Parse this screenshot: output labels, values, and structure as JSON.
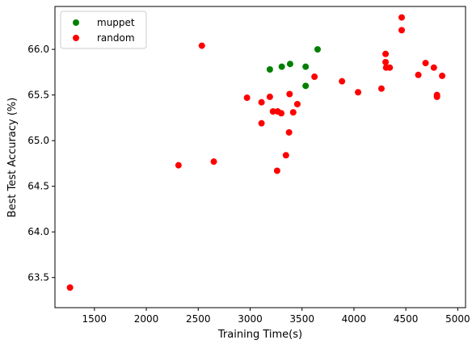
{
  "chart_data": {
    "type": "scatter",
    "xlabel": "Training Time(s)",
    "ylabel": "Best Test Accuracy (%)",
    "xlim": [
      1120,
      5075
    ],
    "ylim": [
      63.17,
      66.47
    ],
    "xticks": [
      1500,
      2000,
      2500,
      3000,
      3500,
      4000,
      4500,
      5000
    ],
    "yticks": [
      63.5,
      64.0,
      64.5,
      65.0,
      65.5,
      66.0
    ],
    "ytick_labels": [
      "63.5",
      "64.0",
      "64.5",
      "65.0",
      "65.5",
      "66.0"
    ],
    "legend_position": "top-left",
    "series": [
      {
        "name": "muppet",
        "color": "#008000",
        "points": [
          [
            3190,
            65.78
          ],
          [
            3305,
            65.81
          ],
          [
            3385,
            65.84
          ],
          [
            3650,
            66.0
          ],
          [
            3535,
            65.81
          ],
          [
            3535,
            65.6
          ]
        ]
      },
      {
        "name": "random",
        "color": "#ff0000",
        "points": [
          [
            1265,
            63.39
          ],
          [
            2310,
            64.73
          ],
          [
            2535,
            66.04
          ],
          [
            2650,
            64.77
          ],
          [
            2970,
            65.47
          ],
          [
            3110,
            65.42
          ],
          [
            3110,
            65.19
          ],
          [
            3190,
            65.48
          ],
          [
            3220,
            65.32
          ],
          [
            3265,
            65.32
          ],
          [
            3300,
            65.3
          ],
          [
            3260,
            64.67
          ],
          [
            3345,
            64.84
          ],
          [
            3375,
            65.09
          ],
          [
            3380,
            65.51
          ],
          [
            3415,
            65.31
          ],
          [
            3455,
            65.4
          ],
          [
            3620,
            65.7
          ],
          [
            3885,
            65.65
          ],
          [
            4040,
            65.53
          ],
          [
            4265,
            65.57
          ],
          [
            4305,
            65.95
          ],
          [
            4305,
            65.86
          ],
          [
            4310,
            65.8
          ],
          [
            4345,
            65.8
          ],
          [
            4460,
            66.35
          ],
          [
            4460,
            66.21
          ],
          [
            4620,
            65.72
          ],
          [
            4690,
            65.85
          ],
          [
            4770,
            65.8
          ],
          [
            4800,
            65.5
          ],
          [
            4800,
            65.48
          ],
          [
            4850,
            65.71
          ]
        ]
      }
    ]
  }
}
